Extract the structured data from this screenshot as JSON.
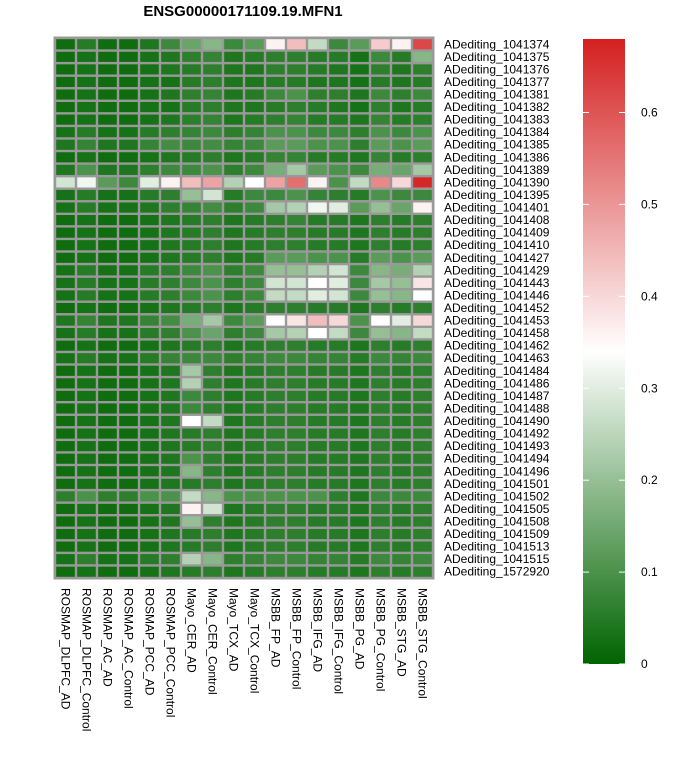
{
  "chart_data": {
    "type": "heatmap",
    "title": "ENSG00000171109.19.MFN1",
    "columns": [
      "ROSMAP_DLPFC_AD",
      "ROSMAP_DLPFC_Control",
      "ROSMAP_AC_AD",
      "ROSMAP_AC_Control",
      "ROSMAP_PCC_AD",
      "ROSMAP_PCC_Control",
      "Mayo_CER_AD",
      "Mayo_CER_Control",
      "Mayo_TCX_AD",
      "Mayo_TCX_Control",
      "MSBB_FP_AD",
      "MSBB_FP_Control",
      "MSBB_IFG_AD",
      "MSBB_IFG_Control",
      "MSBB_PG_AD",
      "MSBB_PG_Control",
      "MSBB_STG_AD",
      "MSBB_STG_Control"
    ],
    "rows": [
      "ADediting_1041374",
      "ADediting_1041375",
      "ADediting_1041376",
      "ADediting_1041377",
      "ADediting_1041381",
      "ADediting_1041382",
      "ADediting_1041383",
      "ADediting_1041384",
      "ADediting_1041385",
      "ADediting_1041386",
      "ADediting_1041389",
      "ADediting_1041390",
      "ADediting_1041395",
      "ADediting_1041401",
      "ADediting_1041408",
      "ADediting_1041409",
      "ADediting_1041410",
      "ADediting_1041427",
      "ADediting_1041429",
      "ADediting_1041443",
      "ADediting_1041446",
      "ADediting_1041452",
      "ADediting_1041453",
      "ADediting_1041458",
      "ADediting_1041462",
      "ADediting_1041463",
      "ADediting_1041484",
      "ADediting_1041486",
      "ADediting_1041487",
      "ADediting_1041488",
      "ADediting_1041490",
      "ADediting_1041492",
      "ADediting_1041493",
      "ADediting_1041494",
      "ADediting_1041496",
      "ADediting_1041501",
      "ADediting_1041502",
      "ADediting_1041505",
      "ADediting_1041508",
      "ADediting_1041509",
      "ADediting_1041513",
      "ADediting_1041515",
      "ADediting_1572920"
    ],
    "values": [
      [
        0.02,
        0.05,
        0.02,
        0.02,
        0.04,
        0.08,
        0.14,
        0.18,
        0.08,
        0.12,
        0.36,
        0.44,
        0.26,
        0.08,
        0.12,
        0.42,
        0.36,
        0.62
      ],
      [
        0.02,
        0.03,
        0.02,
        0.02,
        0.03,
        0.04,
        0.06,
        0.07,
        0.04,
        0.05,
        0.06,
        0.06,
        0.05,
        0.05,
        0.03,
        0.08,
        0.05,
        0.18
      ],
      [
        0.02,
        0.03,
        0.02,
        0.02,
        0.03,
        0.04,
        0.05,
        0.06,
        0.04,
        0.04,
        0.06,
        0.06,
        0.05,
        0.04,
        0.03,
        0.06,
        0.04,
        0.06
      ],
      [
        0.02,
        0.03,
        0.02,
        0.02,
        0.03,
        0.03,
        0.05,
        0.06,
        0.04,
        0.04,
        0.05,
        0.05,
        0.04,
        0.04,
        0.03,
        0.05,
        0.04,
        0.05
      ],
      [
        0.02,
        0.03,
        0.02,
        0.02,
        0.03,
        0.04,
        0.06,
        0.07,
        0.04,
        0.05,
        0.08,
        0.1,
        0.06,
        0.06,
        0.04,
        0.08,
        0.06,
        0.08
      ],
      [
        0.02,
        0.03,
        0.02,
        0.02,
        0.03,
        0.03,
        0.05,
        0.06,
        0.04,
        0.04,
        0.05,
        0.06,
        0.05,
        0.04,
        0.03,
        0.06,
        0.04,
        0.05
      ],
      [
        0.02,
        0.03,
        0.02,
        0.02,
        0.03,
        0.04,
        0.06,
        0.07,
        0.04,
        0.05,
        0.06,
        0.07,
        0.05,
        0.05,
        0.04,
        0.07,
        0.05,
        0.06
      ],
      [
        0.03,
        0.05,
        0.03,
        0.03,
        0.05,
        0.06,
        0.07,
        0.08,
        0.06,
        0.07,
        0.1,
        0.1,
        0.08,
        0.08,
        0.06,
        0.1,
        0.08,
        0.1
      ],
      [
        0.04,
        0.07,
        0.04,
        0.04,
        0.07,
        0.09,
        0.08,
        0.09,
        0.07,
        0.08,
        0.12,
        0.12,
        0.1,
        0.1,
        0.06,
        0.12,
        0.1,
        0.12
      ],
      [
        0.02,
        0.03,
        0.02,
        0.02,
        0.03,
        0.04,
        0.05,
        0.06,
        0.04,
        0.05,
        0.07,
        0.07,
        0.05,
        0.05,
        0.04,
        0.07,
        0.05,
        0.06
      ],
      [
        0.04,
        0.1,
        0.04,
        0.04,
        0.06,
        0.08,
        0.08,
        0.1,
        0.06,
        0.08,
        0.16,
        0.22,
        0.12,
        0.1,
        0.08,
        0.16,
        0.14,
        0.22
      ],
      [
        0.28,
        0.32,
        0.12,
        0.08,
        0.3,
        0.36,
        0.44,
        0.48,
        0.24,
        0.34,
        0.48,
        0.56,
        0.36,
        0.1,
        0.26,
        0.52,
        0.4,
        0.67
      ],
      [
        0.03,
        0.05,
        0.03,
        0.03,
        0.05,
        0.06,
        0.2,
        0.28,
        0.05,
        0.08,
        0.08,
        0.1,
        0.07,
        0.06,
        0.05,
        0.1,
        0.08,
        0.08
      ],
      [
        0.03,
        0.05,
        0.03,
        0.03,
        0.04,
        0.06,
        0.07,
        0.09,
        0.06,
        0.08,
        0.22,
        0.24,
        0.32,
        0.3,
        0.12,
        0.2,
        0.14,
        0.36
      ],
      [
        0.02,
        0.03,
        0.02,
        0.02,
        0.03,
        0.04,
        0.05,
        0.06,
        0.04,
        0.05,
        0.06,
        0.07,
        0.05,
        0.05,
        0.04,
        0.06,
        0.05,
        0.06
      ],
      [
        0.02,
        0.03,
        0.02,
        0.02,
        0.03,
        0.04,
        0.05,
        0.06,
        0.04,
        0.05,
        0.06,
        0.06,
        0.05,
        0.05,
        0.04,
        0.06,
        0.05,
        0.06
      ],
      [
        0.02,
        0.03,
        0.02,
        0.02,
        0.03,
        0.04,
        0.05,
        0.06,
        0.04,
        0.05,
        0.06,
        0.06,
        0.05,
        0.05,
        0.04,
        0.06,
        0.05,
        0.06
      ],
      [
        0.02,
        0.03,
        0.02,
        0.02,
        0.03,
        0.04,
        0.05,
        0.06,
        0.04,
        0.05,
        0.12,
        0.12,
        0.1,
        0.1,
        0.05,
        0.12,
        0.1,
        0.12
      ],
      [
        0.03,
        0.05,
        0.03,
        0.03,
        0.05,
        0.06,
        0.08,
        0.1,
        0.06,
        0.08,
        0.2,
        0.2,
        0.24,
        0.28,
        0.08,
        0.18,
        0.16,
        0.24
      ],
      [
        0.03,
        0.05,
        0.03,
        0.03,
        0.05,
        0.06,
        0.08,
        0.1,
        0.06,
        0.08,
        0.28,
        0.28,
        0.34,
        0.3,
        0.08,
        0.22,
        0.2,
        0.38
      ],
      [
        0.03,
        0.05,
        0.03,
        0.03,
        0.05,
        0.06,
        0.08,
        0.1,
        0.06,
        0.08,
        0.26,
        0.26,
        0.3,
        0.28,
        0.08,
        0.2,
        0.18,
        0.34
      ],
      [
        0.02,
        0.03,
        0.02,
        0.02,
        0.03,
        0.04,
        0.05,
        0.06,
        0.04,
        0.05,
        0.06,
        0.06,
        0.05,
        0.05,
        0.04,
        0.06,
        0.05,
        0.06
      ],
      [
        0.04,
        0.07,
        0.04,
        0.04,
        0.07,
        0.09,
        0.16,
        0.22,
        0.08,
        0.12,
        0.34,
        0.38,
        0.44,
        0.4,
        0.1,
        0.34,
        0.3,
        0.4
      ],
      [
        0.03,
        0.05,
        0.03,
        0.03,
        0.05,
        0.06,
        0.1,
        0.14,
        0.06,
        0.08,
        0.22,
        0.24,
        0.34,
        0.26,
        0.08,
        0.2,
        0.18,
        0.26
      ],
      [
        0.02,
        0.03,
        0.02,
        0.02,
        0.03,
        0.04,
        0.05,
        0.06,
        0.04,
        0.05,
        0.06,
        0.06,
        0.05,
        0.05,
        0.04,
        0.06,
        0.05,
        0.06
      ],
      [
        0.03,
        0.05,
        0.03,
        0.03,
        0.05,
        0.07,
        0.08,
        0.08,
        0.06,
        0.07,
        0.08,
        0.08,
        0.07,
        0.07,
        0.05,
        0.08,
        0.07,
        0.08
      ],
      [
        0.02,
        0.03,
        0.02,
        0.02,
        0.03,
        0.04,
        0.22,
        0.06,
        0.04,
        0.05,
        0.06,
        0.06,
        0.05,
        0.05,
        0.04,
        0.06,
        0.05,
        0.06
      ],
      [
        0.02,
        0.03,
        0.02,
        0.02,
        0.03,
        0.04,
        0.24,
        0.06,
        0.04,
        0.05,
        0.06,
        0.06,
        0.05,
        0.05,
        0.04,
        0.06,
        0.05,
        0.06
      ],
      [
        0.02,
        0.03,
        0.02,
        0.02,
        0.03,
        0.04,
        0.08,
        0.06,
        0.04,
        0.05,
        0.06,
        0.06,
        0.05,
        0.05,
        0.04,
        0.06,
        0.05,
        0.06
      ],
      [
        0.02,
        0.03,
        0.02,
        0.02,
        0.03,
        0.04,
        0.08,
        0.06,
        0.04,
        0.05,
        0.06,
        0.06,
        0.05,
        0.05,
        0.04,
        0.06,
        0.05,
        0.06
      ],
      [
        0.02,
        0.03,
        0.02,
        0.02,
        0.03,
        0.04,
        0.34,
        0.26,
        0.04,
        0.05,
        0.06,
        0.06,
        0.05,
        0.05,
        0.04,
        0.06,
        0.05,
        0.06
      ],
      [
        0.02,
        0.03,
        0.02,
        0.02,
        0.03,
        0.04,
        0.05,
        0.06,
        0.04,
        0.05,
        0.06,
        0.06,
        0.05,
        0.05,
        0.04,
        0.06,
        0.05,
        0.06
      ],
      [
        0.02,
        0.03,
        0.02,
        0.02,
        0.03,
        0.04,
        0.05,
        0.06,
        0.04,
        0.05,
        0.06,
        0.06,
        0.05,
        0.05,
        0.04,
        0.06,
        0.05,
        0.06
      ],
      [
        0.02,
        0.03,
        0.02,
        0.02,
        0.03,
        0.04,
        0.1,
        0.06,
        0.04,
        0.05,
        0.06,
        0.06,
        0.05,
        0.05,
        0.04,
        0.06,
        0.05,
        0.06
      ],
      [
        0.02,
        0.03,
        0.02,
        0.02,
        0.03,
        0.04,
        0.18,
        0.06,
        0.04,
        0.05,
        0.06,
        0.06,
        0.05,
        0.05,
        0.04,
        0.06,
        0.05,
        0.06
      ],
      [
        0.02,
        0.03,
        0.02,
        0.02,
        0.03,
        0.04,
        0.05,
        0.06,
        0.04,
        0.05,
        0.06,
        0.06,
        0.05,
        0.05,
        0.04,
        0.06,
        0.05,
        0.06
      ],
      [
        0.06,
        0.1,
        0.06,
        0.06,
        0.1,
        0.1,
        0.26,
        0.18,
        0.1,
        0.1,
        0.1,
        0.1,
        0.1,
        0.06,
        0.04,
        0.08,
        0.08,
        0.08
      ],
      [
        0.02,
        0.03,
        0.02,
        0.02,
        0.03,
        0.04,
        0.36,
        0.28,
        0.04,
        0.05,
        0.06,
        0.06,
        0.05,
        0.05,
        0.04,
        0.06,
        0.05,
        0.06
      ],
      [
        0.02,
        0.03,
        0.02,
        0.02,
        0.03,
        0.04,
        0.2,
        0.06,
        0.04,
        0.05,
        0.06,
        0.06,
        0.05,
        0.05,
        0.04,
        0.06,
        0.05,
        0.06
      ],
      [
        0.02,
        0.03,
        0.02,
        0.02,
        0.03,
        0.04,
        0.05,
        0.06,
        0.04,
        0.05,
        0.06,
        0.06,
        0.05,
        0.05,
        0.04,
        0.06,
        0.05,
        0.06
      ],
      [
        0.02,
        0.03,
        0.02,
        0.02,
        0.03,
        0.04,
        0.05,
        0.06,
        0.04,
        0.05,
        0.06,
        0.06,
        0.05,
        0.05,
        0.04,
        0.06,
        0.05,
        0.06
      ],
      [
        0.03,
        0.06,
        0.03,
        0.03,
        0.05,
        0.06,
        0.24,
        0.18,
        0.06,
        0.07,
        0.08,
        0.08,
        0.07,
        0.07,
        0.05,
        0.08,
        0.07,
        0.08
      ],
      [
        0.02,
        0.03,
        0.02,
        0.02,
        0.03,
        0.04,
        0.05,
        0.06,
        0.04,
        0.05,
        0.06,
        0.06,
        0.05,
        0.05,
        0.04,
        0.06,
        0.05,
        0.06
      ]
    ],
    "colorbar": {
      "min": 0,
      "max": 0.68,
      "ticks": [
        0,
        0.1,
        0.2,
        0.3,
        0.4,
        0.5,
        0.6
      ],
      "tick_labels": [
        "0",
        "0.1",
        "0.2",
        "0.3",
        "0.4",
        "0.5",
        "0.6"
      ],
      "low_color": "#006400",
      "mid_color": "#ffffff",
      "high_color": "#d42020",
      "mid_value": 0.34
    },
    "grid_color": "#999999"
  }
}
